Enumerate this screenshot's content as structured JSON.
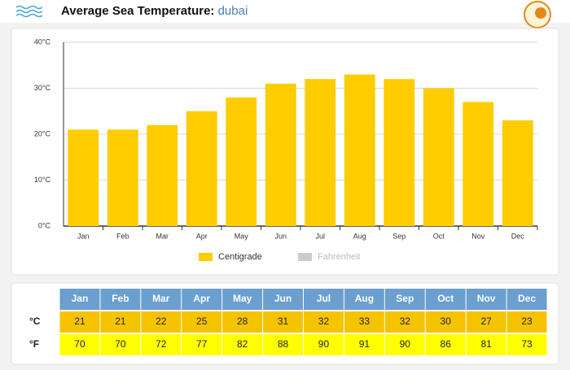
{
  "header": {
    "title": "Average Sea Temperature:",
    "location": "dubai"
  },
  "chart_data": {
    "type": "bar",
    "categories": [
      "Jan",
      "Feb",
      "Mar",
      "Apr",
      "May",
      "Jun",
      "Jul",
      "Aug",
      "Sep",
      "Oct",
      "Nov",
      "Dec"
    ],
    "series": [
      {
        "name": "Centigrade",
        "color": "#ffcc00",
        "values": [
          21,
          21,
          22,
          25,
          28,
          31,
          32,
          33,
          32,
          30,
          27,
          23
        ]
      },
      {
        "name": "Fahrenheit",
        "color": "#cccccc",
        "hidden": true,
        "values": [
          70,
          70,
          72,
          77,
          82,
          88,
          90,
          91,
          90,
          86,
          81,
          73
        ]
      }
    ],
    "ylim": [
      0,
      40
    ],
    "yticks": [
      {
        "value": 0,
        "label": "0°C"
      },
      {
        "value": 10,
        "label": "10°C"
      },
      {
        "value": 20,
        "label": "20°C"
      },
      {
        "value": 30,
        "label": "30°C"
      },
      {
        "value": 40,
        "label": "40°C"
      }
    ],
    "grid": true
  },
  "table": {
    "row_labels": [
      "°C",
      "°F"
    ]
  }
}
